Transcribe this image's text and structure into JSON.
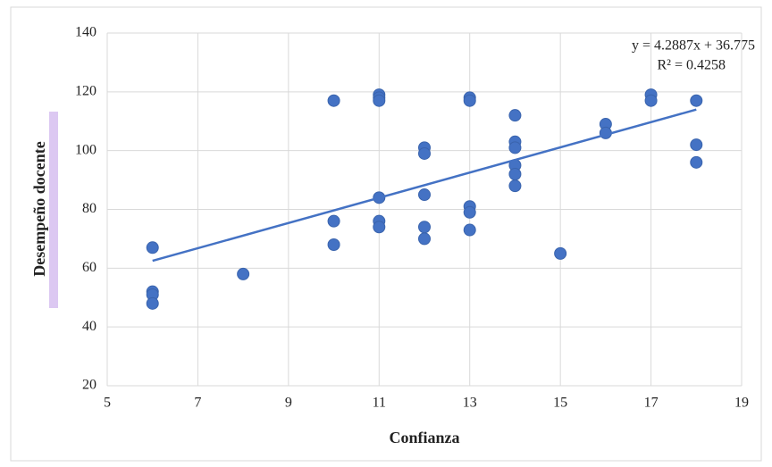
{
  "chart_data": {
    "type": "scatter",
    "x_label": "Confianza",
    "y_label": "Desempeño docente",
    "xlim": [
      5,
      19
    ],
    "xticks": [
      5,
      7,
      9,
      11,
      13,
      15,
      17,
      19
    ],
    "ylim": [
      20,
      140
    ],
    "yticks": [
      20,
      40,
      60,
      80,
      100,
      120,
      140
    ],
    "grid": true,
    "series": [
      {
        "color": "#4472c4",
        "x": [
          6,
          6,
          6,
          6,
          8,
          10,
          10,
          10,
          11,
          11,
          11,
          11,
          11,
          11,
          12,
          12,
          12,
          12,
          12,
          13,
          13,
          13,
          13,
          13,
          14,
          14,
          14,
          14,
          14,
          14,
          15,
          16,
          16,
          17,
          17,
          18,
          18,
          18
        ],
        "values": [
          67,
          52,
          51,
          48,
          58,
          117,
          76,
          68,
          119,
          118,
          117,
          84,
          76,
          74,
          101,
          99,
          85,
          74,
          70,
          118,
          117,
          81,
          79,
          73,
          112,
          103,
          101,
          95,
          92,
          88,
          65,
          109,
          106,
          119,
          117,
          117,
          102,
          96
        ]
      }
    ],
    "trendline": {
      "slope": 4.2887,
      "intercept": 36.775,
      "color": "#4472c4",
      "equation": "y = 4.2887x + 36.775",
      "r_squared": "R² = 0.4258"
    }
  }
}
